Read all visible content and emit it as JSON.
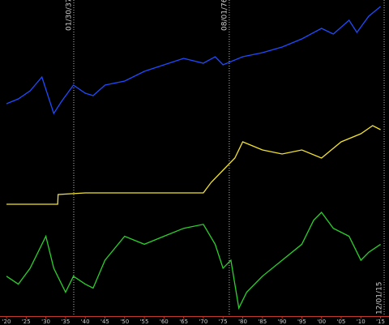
{
  "chart_data": [
    {
      "type": "line",
      "x": [
        1920,
        1923,
        1926,
        1929,
        1932,
        1934,
        1937,
        1940,
        1942,
        1945,
        1950,
        1955,
        1960,
        1965,
        1970,
        1973,
        1975,
        1980,
        1985,
        1990,
        1995,
        2000,
        2003,
        2007,
        2009,
        2012,
        2015
      ],
      "series": [
        {
          "color": "#1f4bff",
          "values": [
            17,
            23,
            33,
            50,
            5,
            20,
            40,
            30,
            27,
            40,
            45,
            57,
            65,
            73,
            67,
            75,
            65,
            75,
            80,
            87,
            97,
            110,
            103,
            120,
            105,
            125,
            137
          ]
        }
      ],
      "xlim": [
        1918.35,
        2017.15
      ],
      "ylim": [
        0,
        140
      ],
      "annotations": [
        {
          "x": 1937.08,
          "label": "01/30/37"
        },
        {
          "x": 1976.58,
          "label": "08/01/76"
        },
        {
          "x": 2015.92,
          "label": "12/01/15"
        }
      ]
    },
    {
      "type": "line",
      "x": [
        1920,
        1933,
        1933.1,
        1940,
        1950,
        1960,
        1970,
        1972,
        1975,
        1978,
        1980,
        1985,
        1990,
        1995,
        2000,
        2005,
        2010,
        2013,
        2015
      ],
      "series": [
        {
          "color": "#f2e230",
          "values": [
            3,
            3,
            15,
            17,
            17,
            17,
            17,
            30,
            45,
            60,
            80,
            70,
            65,
            70,
            60,
            80,
            90,
            100,
            95
          ]
        }
      ],
      "xlim": [
        1918.35,
        2017.15
      ],
      "ylim": [
        0,
        105
      ]
    },
    {
      "type": "line",
      "x": [
        1920,
        1923,
        1926,
        1930,
        1932,
        1935,
        1937,
        1940,
        1942,
        1945,
        1950,
        1955,
        1960,
        1965,
        1970,
        1973,
        1975,
        1977,
        1979,
        1981,
        1985,
        1990,
        1995,
        1998,
        2000,
        2003,
        2007,
        2010,
        2012,
        2015
      ],
      "series": [
        {
          "color": "#2bd12b",
          "values": [
            50,
            40,
            60,
            100,
            60,
            30,
            50,
            40,
            35,
            70,
            100,
            90,
            100,
            110,
            115,
            90,
            60,
            70,
            10,
            30,
            50,
            70,
            90,
            120,
            130,
            110,
            100,
            70,
            80,
            90
          ]
        }
      ],
      "xlim": [
        1918.35,
        2017.15
      ],
      "ylim": [
        0,
        130
      ],
      "xticks": [
        {
          "value": 1920,
          "label": "'20"
        },
        {
          "value": 1925,
          "label": "'25"
        },
        {
          "value": 1930,
          "label": "'30"
        },
        {
          "value": 1935,
          "label": "'35"
        },
        {
          "value": 1940,
          "label": "'40"
        },
        {
          "value": 1945,
          "label": "'45"
        },
        {
          "value": 1950,
          "label": "'50"
        },
        {
          "value": 1955,
          "label": "'55"
        },
        {
          "value": 1960,
          "label": "'60"
        },
        {
          "value": 1965,
          "label": "'65"
        },
        {
          "value": 1970,
          "label": "'70"
        },
        {
          "value": 1975,
          "label": "'75"
        },
        {
          "value": 1980,
          "label": "'80"
        },
        {
          "value": 1985,
          "label": "'85"
        },
        {
          "value": 1990,
          "label": "'90"
        },
        {
          "value": 1995,
          "label": "'95"
        },
        {
          "value": 2000,
          "label": "'00"
        },
        {
          "value": 2005,
          "label": "'05"
        },
        {
          "value": 2010,
          "label": "'10"
        },
        {
          "value": 2015,
          "label": "'15"
        }
      ]
    }
  ]
}
